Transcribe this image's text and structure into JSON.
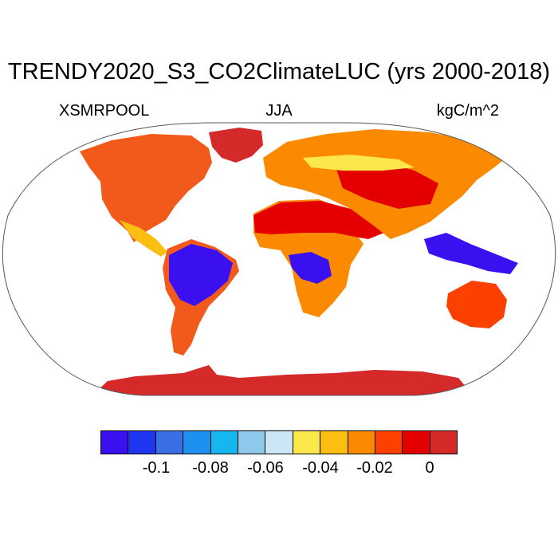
{
  "title": "TRENDY2020_S3_CO2ClimateLUC (yrs 2000-2018)",
  "variable": "XSMRPOOL",
  "season": "JJA",
  "units": "kgC/m^2",
  "colorbar": {
    "colors": [
      "#3a0ff0",
      "#2036ee",
      "#3a70e6",
      "#1e90f0",
      "#16b6f0",
      "#90c8ec",
      "#cce6f6",
      "#fce84c",
      "#fcbe10",
      "#fc8a00",
      "#fc4000",
      "#e40000",
      "#d42a2a"
    ],
    "tick_labels": [
      "-0.1",
      "-0.08",
      "-0.06",
      "-0.04",
      "-0.02",
      "0"
    ]
  },
  "regions": {
    "north_america": "#f25a1c",
    "greenland": "#d42a2a",
    "amazon": "#3a0ff0",
    "central_africa": "#3a0ff0",
    "sahara_arabia": "#e40000",
    "europe_asia": "#fc8a00",
    "antarctica": "#d42a2a",
    "australia": "#fc4000",
    "maritime_se_asia": "#3a0ff0"
  }
}
